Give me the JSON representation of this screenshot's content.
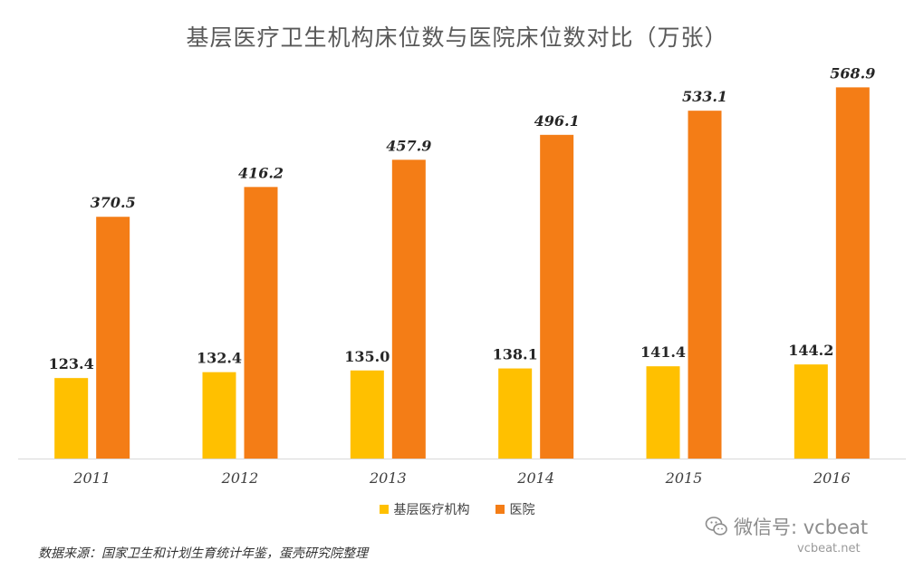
{
  "chart_data": {
    "type": "bar",
    "title": "基层医疗卫生机构床位数与医院床位数对比（万张）",
    "categories": [
      "2011",
      "2012",
      "2013",
      "2014",
      "2015",
      "2016"
    ],
    "series": [
      {
        "name": "基层医疗机构",
        "color": "#FFC000",
        "values": [
          123.4,
          132.4,
          135.0,
          138.1,
          141.4,
          144.2
        ],
        "labels": [
          "123.4",
          "132.4",
          "135.0",
          "138.1",
          "141.4",
          "144.2"
        ]
      },
      {
        "name": "医院",
        "color": "#F47D16",
        "values": [
          370.5,
          416.2,
          457.9,
          496.1,
          533.1,
          568.9
        ],
        "labels": [
          "370.5",
          "416.2",
          "457.9",
          "496.1",
          "533.1",
          "568.9"
        ]
      }
    ],
    "xlabel": "",
    "ylabel": "",
    "ylim": [
      0,
      600
    ],
    "grid": false,
    "legend": "bottom"
  },
  "source_note": "数据来源：国家卫生和计划生育统计年鉴，蛋壳研究院整理",
  "watermark": {
    "text": "微信号: vcbeat",
    "site": "vcbeat.net",
    "icon": "wechat-icon"
  }
}
